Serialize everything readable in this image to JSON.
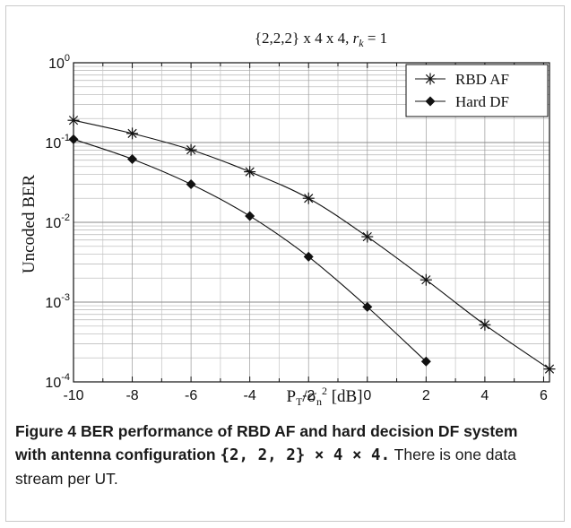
{
  "chart_data": {
    "type": "line",
    "title": "{2,2,2} x 4 x 4, r_k = 1",
    "title_parts": {
      "main": "{2,2,2} x 4 x 4, ",
      "r": "r",
      "k": "k",
      "eq": " = 1"
    },
    "xlabel": "P_T/σ_n^2 [dB]",
    "xlabel_parts": {
      "P": "P",
      "T": "T",
      "slash": "/σ",
      "n": "n",
      "two": "2",
      "unit": " [dB]"
    },
    "ylabel": "Uncoded BER",
    "xlim": [
      -10,
      6.2
    ],
    "ylim": [
      0.0001,
      1
    ],
    "yscale": "log",
    "grid": true,
    "xticks": [
      "-10",
      "-8",
      "-6",
      "-4",
      "-2",
      "0",
      "2",
      "4",
      "6"
    ],
    "yticks": [
      {
        "base": "10",
        "exp": "0"
      },
      {
        "base": "10",
        "exp": "-1"
      },
      {
        "base": "10",
        "exp": "-2"
      },
      {
        "base": "10",
        "exp": "-3"
      },
      {
        "base": "10",
        "exp": "-4"
      }
    ],
    "legend_position": "top-right",
    "series": [
      {
        "name": "RBD AF",
        "marker": "asterisk",
        "x": [
          -10,
          -8,
          -6,
          -4,
          -2,
          0,
          2,
          4,
          6.2
        ],
        "y": [
          0.19,
          0.13,
          0.081,
          0.043,
          0.02,
          0.0066,
          0.0019,
          0.00052,
          0.000145
        ]
      },
      {
        "name": "Hard DF",
        "marker": "diamond",
        "x": [
          -10,
          -8,
          -6,
          -4,
          -2,
          0,
          2
        ],
        "y": [
          0.11,
          0.062,
          0.03,
          0.012,
          0.0037,
          0.00087,
          0.00018
        ]
      }
    ]
  },
  "caption": {
    "figure_label": "Figure 4",
    "bold_text": " BER performance of RBD AF and hard decision DF system with antenna configuration ",
    "config": "{2, 2, 2} × 4 × 4.",
    "normal_text": " There is one data stream per UT."
  }
}
